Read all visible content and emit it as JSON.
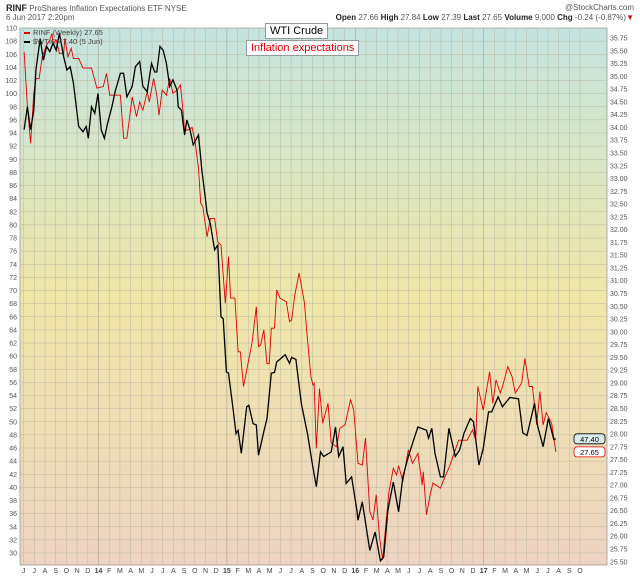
{
  "header": {
    "symbol": "RINF",
    "name": "ProShares Inflation Expectations ETF",
    "exchange": "NYSE",
    "datetime": "6 Jun 2017 2:20pm",
    "credit": "@StockCharts.com",
    "open_label": "Open",
    "open": "27.66",
    "high_label": "High",
    "high": "27.84",
    "low_label": "Low",
    "low": "27.39",
    "last_label": "Last",
    "last": "27.65",
    "volume_label": "Volume",
    "volume": "9,000",
    "chg_label": "Chg",
    "chg": "-0.24 (-0.87%)",
    "chg_arrow": "▼"
  },
  "annotations": {
    "wti": "WTI Crude",
    "inflation": "Inflation expectations"
  },
  "colors": {
    "rinf": "#e00000",
    "wtic": "#000000",
    "bg_top": "#c4e3e0",
    "bg_mid": "#efe7a8",
    "bg_bottom": "#eed3c2"
  },
  "chart_data": {
    "type": "line",
    "title": "RINF ProShares Inflation Expectations ETF",
    "x_unit": "months since Jun 2013",
    "xlim": [
      0,
      54
    ],
    "x_tick_labels": [
      "J",
      "J",
      "A",
      "S",
      "O",
      "N",
      "D",
      "14",
      "F",
      "M",
      "A",
      "M",
      "J",
      "J",
      "A",
      "S",
      "O",
      "N",
      "D",
      "15",
      "F",
      "M",
      "A",
      "M",
      "J",
      "J",
      "A",
      "S",
      "O",
      "N",
      "D",
      "16",
      "F",
      "M",
      "A",
      "M",
      "J",
      "J",
      "A",
      "S",
      "O",
      "N",
      "D",
      "17",
      "F",
      "M",
      "A",
      "M",
      "J",
      "J",
      "A",
      "S",
      "O"
    ],
    "left_axis": {
      "ylim": [
        30,
        110
      ],
      "step": 2
    },
    "right_axis": {
      "ylim": [
        25.5,
        35.75
      ],
      "step": 0.25
    },
    "grid": true,
    "legend_position": "top-left",
    "series": [
      {
        "name": "RINF (Weekly) 27.65",
        "axis": "right",
        "color": "#e00000",
        "last_label": "27.65",
        "points": [
          [
            0.2,
            35.48
          ],
          [
            0.5,
            34.41
          ],
          [
            0.8,
            33.69
          ],
          [
            1.1,
            34.67
          ],
          [
            1.3,
            34.96
          ],
          [
            1.6,
            34.96
          ],
          [
            1.9,
            35.38
          ],
          [
            2.3,
            35.61
          ],
          [
            2.6,
            35.71
          ],
          [
            2.8,
            35.84
          ],
          [
            2.9,
            35.65
          ],
          [
            3.2,
            35.71
          ],
          [
            3.5,
            35.45
          ],
          [
            3.9,
            35.45
          ],
          [
            4.0,
            35.74
          ],
          [
            4.3,
            35.38
          ],
          [
            4.6,
            35.55
          ],
          [
            4.8,
            35.35
          ],
          [
            5.3,
            35.35
          ],
          [
            5.7,
            35.16
          ],
          [
            6.5,
            35.16
          ],
          [
            7.0,
            34.77
          ],
          [
            7.6,
            34.8
          ],
          [
            7.9,
            35.06
          ],
          [
            8.2,
            34.63
          ],
          [
            9.2,
            34.63
          ],
          [
            9.5,
            33.79
          ],
          [
            9.8,
            33.79
          ],
          [
            10.3,
            34.6
          ],
          [
            10.7,
            34.21
          ],
          [
            11.0,
            34.5
          ],
          [
            11.3,
            34.34
          ],
          [
            11.7,
            34.7
          ],
          [
            11.9,
            34.5
          ],
          [
            12.3,
            34.96
          ],
          [
            12.6,
            34.63
          ],
          [
            12.8,
            34.24
          ],
          [
            13.1,
            34.73
          ],
          [
            13.5,
            34.63
          ],
          [
            13.8,
            34.96
          ],
          [
            14.1,
            34.67
          ],
          [
            14.5,
            34.73
          ],
          [
            14.8,
            34.83
          ],
          [
            15.0,
            34.44
          ],
          [
            15.2,
            33.95
          ],
          [
            15.5,
            33.95
          ],
          [
            15.9,
            34.0
          ],
          [
            16.2,
            33.69
          ],
          [
            16.5,
            33.2
          ],
          [
            16.7,
            32.52
          ],
          [
            16.9,
            32.45
          ],
          [
            17.3,
            31.86
          ],
          [
            17.6,
            32.22
          ],
          [
            18.0,
            32.22
          ],
          [
            18.3,
            31.76
          ],
          [
            18.6,
            31.7
          ],
          [
            19.0,
            30.56
          ],
          [
            19.3,
            31.47
          ],
          [
            19.5,
            30.66
          ],
          [
            19.9,
            30.66
          ],
          [
            20.2,
            29.61
          ],
          [
            20.4,
            29.61
          ],
          [
            20.7,
            28.93
          ],
          [
            21.5,
            29.78
          ],
          [
            21.9,
            30.49
          ],
          [
            22.1,
            29.71
          ],
          [
            22.3,
            29.74
          ],
          [
            22.6,
            30.04
          ],
          [
            22.9,
            29.38
          ],
          [
            23.1,
            29.38
          ],
          [
            23.3,
            30.07
          ],
          [
            23.6,
            30.07
          ],
          [
            23.8,
            30.82
          ],
          [
            24.1,
            30.66
          ],
          [
            24.7,
            30.59
          ],
          [
            25.0,
            30.2
          ],
          [
            25.2,
            30.23
          ],
          [
            25.5,
            30.72
          ],
          [
            25.9,
            31.15
          ],
          [
            26.4,
            30.56
          ],
          [
            26.6,
            30.04
          ],
          [
            27.0,
            29.12
          ],
          [
            27.2,
            28.96
          ],
          [
            27.3,
            28.99
          ],
          [
            27.5,
            27.72
          ],
          [
            27.8,
            28.89
          ],
          [
            28.1,
            28.21
          ],
          [
            28.6,
            28.6
          ],
          [
            28.9,
            27.82
          ],
          [
            29.4,
            27.75
          ],
          [
            29.7,
            28.11
          ],
          [
            30.2,
            28.18
          ],
          [
            30.7,
            28.67
          ],
          [
            31.0,
            28.47
          ],
          [
            31.4,
            27.43
          ],
          [
            31.8,
            27.39
          ],
          [
            32.1,
            27.92
          ],
          [
            32.5,
            26.48
          ],
          [
            32.8,
            26.32
          ],
          [
            33.1,
            26.81
          ],
          [
            33.4,
            26.0
          ],
          [
            33.7,
            25.54
          ],
          [
            34.1,
            26.45
          ],
          [
            34.3,
            26.87
          ],
          [
            34.7,
            27.33
          ],
          [
            35.0,
            27.2
          ],
          [
            35.2,
            27.38
          ],
          [
            35.6,
            27.07
          ],
          [
            36.1,
            27.69
          ],
          [
            36.5,
            27.43
          ],
          [
            37.0,
            27.62
          ],
          [
            37.4,
            27.0
          ],
          [
            37.5,
            27.26
          ],
          [
            37.8,
            26.42
          ],
          [
            38.1,
            26.77
          ],
          [
            38.4,
            27.04
          ],
          [
            39.1,
            26.94
          ],
          [
            39.4,
            27.1
          ],
          [
            40.0,
            27.39
          ],
          [
            40.8,
            27.88
          ],
          [
            41.6,
            27.88
          ],
          [
            42.1,
            28.08
          ],
          [
            42.4,
            27.88
          ],
          [
            42.6,
            28.93
          ],
          [
            43.1,
            28.47
          ],
          [
            43.7,
            29.22
          ],
          [
            44.0,
            28.6
          ],
          [
            44.3,
            29.06
          ],
          [
            44.7,
            28.8
          ],
          [
            45.0,
            29.0
          ],
          [
            45.4,
            29.32
          ],
          [
            45.8,
            29.12
          ],
          [
            46.1,
            28.8
          ],
          [
            46.7,
            29.0
          ],
          [
            47.0,
            29.48
          ],
          [
            47.4,
            28.93
          ],
          [
            47.7,
            28.93
          ],
          [
            48.1,
            28.18
          ],
          [
            48.4,
            28.83
          ],
          [
            48.7,
            28.18
          ],
          [
            49.0,
            28.42
          ],
          [
            49.5,
            28.21
          ],
          [
            49.9,
            27.65
          ]
        ]
      },
      {
        "name": "$WTIC 47.40 (5 Jun)",
        "axis": "left",
        "color": "#000000",
        "last_label": "47.40",
        "points": [
          [
            0.2,
            94.5
          ],
          [
            0.5,
            98.0
          ],
          [
            0.8,
            94.5
          ],
          [
            1.1,
            97.5
          ],
          [
            1.3,
            103.6
          ],
          [
            1.7,
            108.4
          ],
          [
            2.0,
            105.1
          ],
          [
            2.3,
            107.2
          ],
          [
            2.6,
            106.4
          ],
          [
            2.9,
            107.7
          ],
          [
            3.2,
            106.6
          ],
          [
            3.5,
            109.2
          ],
          [
            3.9,
            105.6
          ],
          [
            4.2,
            103.6
          ],
          [
            4.5,
            104.1
          ],
          [
            4.8,
            101.6
          ],
          [
            5.3,
            95.0
          ],
          [
            5.7,
            94.2
          ],
          [
            6.0,
            95.0
          ],
          [
            6.2,
            93.2
          ],
          [
            6.5,
            98.0
          ],
          [
            6.8,
            97.0
          ],
          [
            7.1,
            100.0
          ],
          [
            7.4,
            94.5
          ],
          [
            7.7,
            93.2
          ],
          [
            8.0,
            95.5
          ],
          [
            8.4,
            98.0
          ],
          [
            8.7,
            100.3
          ],
          [
            9.2,
            103.1
          ],
          [
            9.5,
            103.1
          ],
          [
            9.8,
            99.5
          ],
          [
            10.3,
            101.1
          ],
          [
            10.6,
            104.1
          ],
          [
            11.0,
            104.9
          ],
          [
            11.3,
            101.1
          ],
          [
            11.7,
            100.3
          ],
          [
            12.1,
            104.6
          ],
          [
            12.4,
            103.3
          ],
          [
            12.6,
            103.3
          ],
          [
            12.9,
            107.2
          ],
          [
            13.2,
            106.6
          ],
          [
            13.5,
            104.6
          ],
          [
            13.8,
            101.1
          ],
          [
            14.1,
            102.1
          ],
          [
            14.5,
            100.5
          ],
          [
            14.6,
            98.0
          ],
          [
            14.9,
            97.5
          ],
          [
            15.2,
            93.7
          ],
          [
            15.4,
            96.0
          ],
          [
            15.7,
            94.5
          ],
          [
            16.0,
            92.2
          ],
          [
            16.5,
            93.7
          ],
          [
            16.8,
            88.4
          ],
          [
            17.1,
            84.5
          ],
          [
            17.3,
            81.8
          ],
          [
            17.6,
            80.2
          ],
          [
            18.0,
            76.2
          ],
          [
            18.3,
            76.9
          ],
          [
            18.6,
            66.0
          ],
          [
            18.8,
            65.7
          ],
          [
            19.1,
            57.6
          ],
          [
            19.3,
            57.4
          ],
          [
            19.7,
            52.3
          ],
          [
            20.0,
            48.2
          ],
          [
            20.2,
            48.7
          ],
          [
            20.5,
            45.2
          ],
          [
            21.0,
            52.3
          ],
          [
            21.2,
            52.5
          ],
          [
            21.6,
            49.7
          ],
          [
            21.9,
            49.5
          ],
          [
            22.1,
            44.9
          ],
          [
            22.6,
            48.5
          ],
          [
            22.9,
            50.5
          ],
          [
            23.3,
            57.4
          ],
          [
            23.6,
            57.5
          ],
          [
            23.8,
            59.1
          ],
          [
            24.6,
            60.2
          ],
          [
            25.0,
            58.9
          ],
          [
            25.2,
            59.8
          ],
          [
            25.6,
            59.5
          ],
          [
            26.1,
            52.8
          ],
          [
            26.7,
            48.0
          ],
          [
            27.1,
            43.9
          ],
          [
            27.5,
            40.1
          ],
          [
            27.9,
            45.4
          ],
          [
            28.2,
            44.7
          ],
          [
            28.9,
            45.4
          ],
          [
            29.3,
            49.2
          ],
          [
            29.6,
            44.7
          ],
          [
            30.0,
            46.2
          ],
          [
            30.3,
            40.6
          ],
          [
            30.8,
            41.6
          ],
          [
            31.3,
            36.5
          ],
          [
            31.4,
            35.0
          ],
          [
            31.8,
            37.8
          ],
          [
            32.5,
            30.4
          ],
          [
            33.0,
            33.2
          ],
          [
            33.5,
            28.8
          ],
          [
            33.8,
            29.4
          ],
          [
            34.2,
            36.5
          ],
          [
            34.7,
            40.8
          ],
          [
            35.2,
            36.3
          ],
          [
            35.6,
            41.6
          ],
          [
            36.1,
            44.7
          ],
          [
            36.6,
            47.2
          ],
          [
            37.0,
            49.2
          ],
          [
            37.8,
            48.7
          ],
          [
            38.0,
            47.5
          ],
          [
            38.3,
            49.0
          ],
          [
            38.6,
            45.2
          ],
          [
            39.1,
            41.6
          ],
          [
            39.4,
            41.6
          ],
          [
            39.9,
            49.0
          ],
          [
            40.5,
            44.7
          ],
          [
            40.9,
            45.7
          ],
          [
            41.3,
            48.2
          ],
          [
            41.9,
            50.5
          ],
          [
            42.2,
            50.0
          ],
          [
            42.7,
            43.4
          ],
          [
            43.1,
            45.9
          ],
          [
            43.6,
            51.5
          ],
          [
            43.9,
            51.5
          ],
          [
            44.5,
            53.8
          ],
          [
            44.9,
            52.3
          ],
          [
            45.6,
            53.7
          ],
          [
            46.4,
            53.5
          ],
          [
            46.8,
            48.3
          ],
          [
            47.2,
            47.9
          ],
          [
            47.9,
            52.8
          ],
          [
            48.2,
            49.3
          ],
          [
            48.7,
            46.2
          ],
          [
            49.2,
            50.5
          ],
          [
            49.7,
            47.3
          ],
          [
            49.9,
            47.4
          ]
        ]
      }
    ]
  }
}
